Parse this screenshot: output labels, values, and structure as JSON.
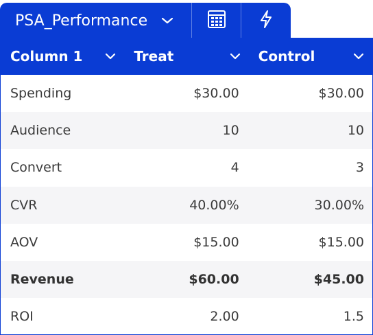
{
  "tab": {
    "name": "PSA_Performance"
  },
  "columns": [
    {
      "label": "Column 1"
    },
    {
      "label": "Treat"
    },
    {
      "label": "Control"
    }
  ],
  "rows": [
    {
      "label": "Spending",
      "treat": "$30.00",
      "control": "$30.00",
      "bold": false
    },
    {
      "label": "Audience",
      "treat": "10",
      "control": "10",
      "bold": false
    },
    {
      "label": "Convert",
      "treat": "4",
      "control": "3",
      "bold": false
    },
    {
      "label": "CVR",
      "treat": "40.00%",
      "control": "30.00%",
      "bold": false
    },
    {
      "label": "AOV",
      "treat": "$15.00",
      "control": "$15.00",
      "bold": false
    },
    {
      "label": "Revenue",
      "treat": "$60.00",
      "control": "$45.00",
      "bold": true
    },
    {
      "label": "ROI",
      "treat": "2.00",
      "control": "1.5",
      "bold": false
    }
  ],
  "colors": {
    "accent": "#0a3cd4",
    "stripe": "#f5f5f7"
  }
}
